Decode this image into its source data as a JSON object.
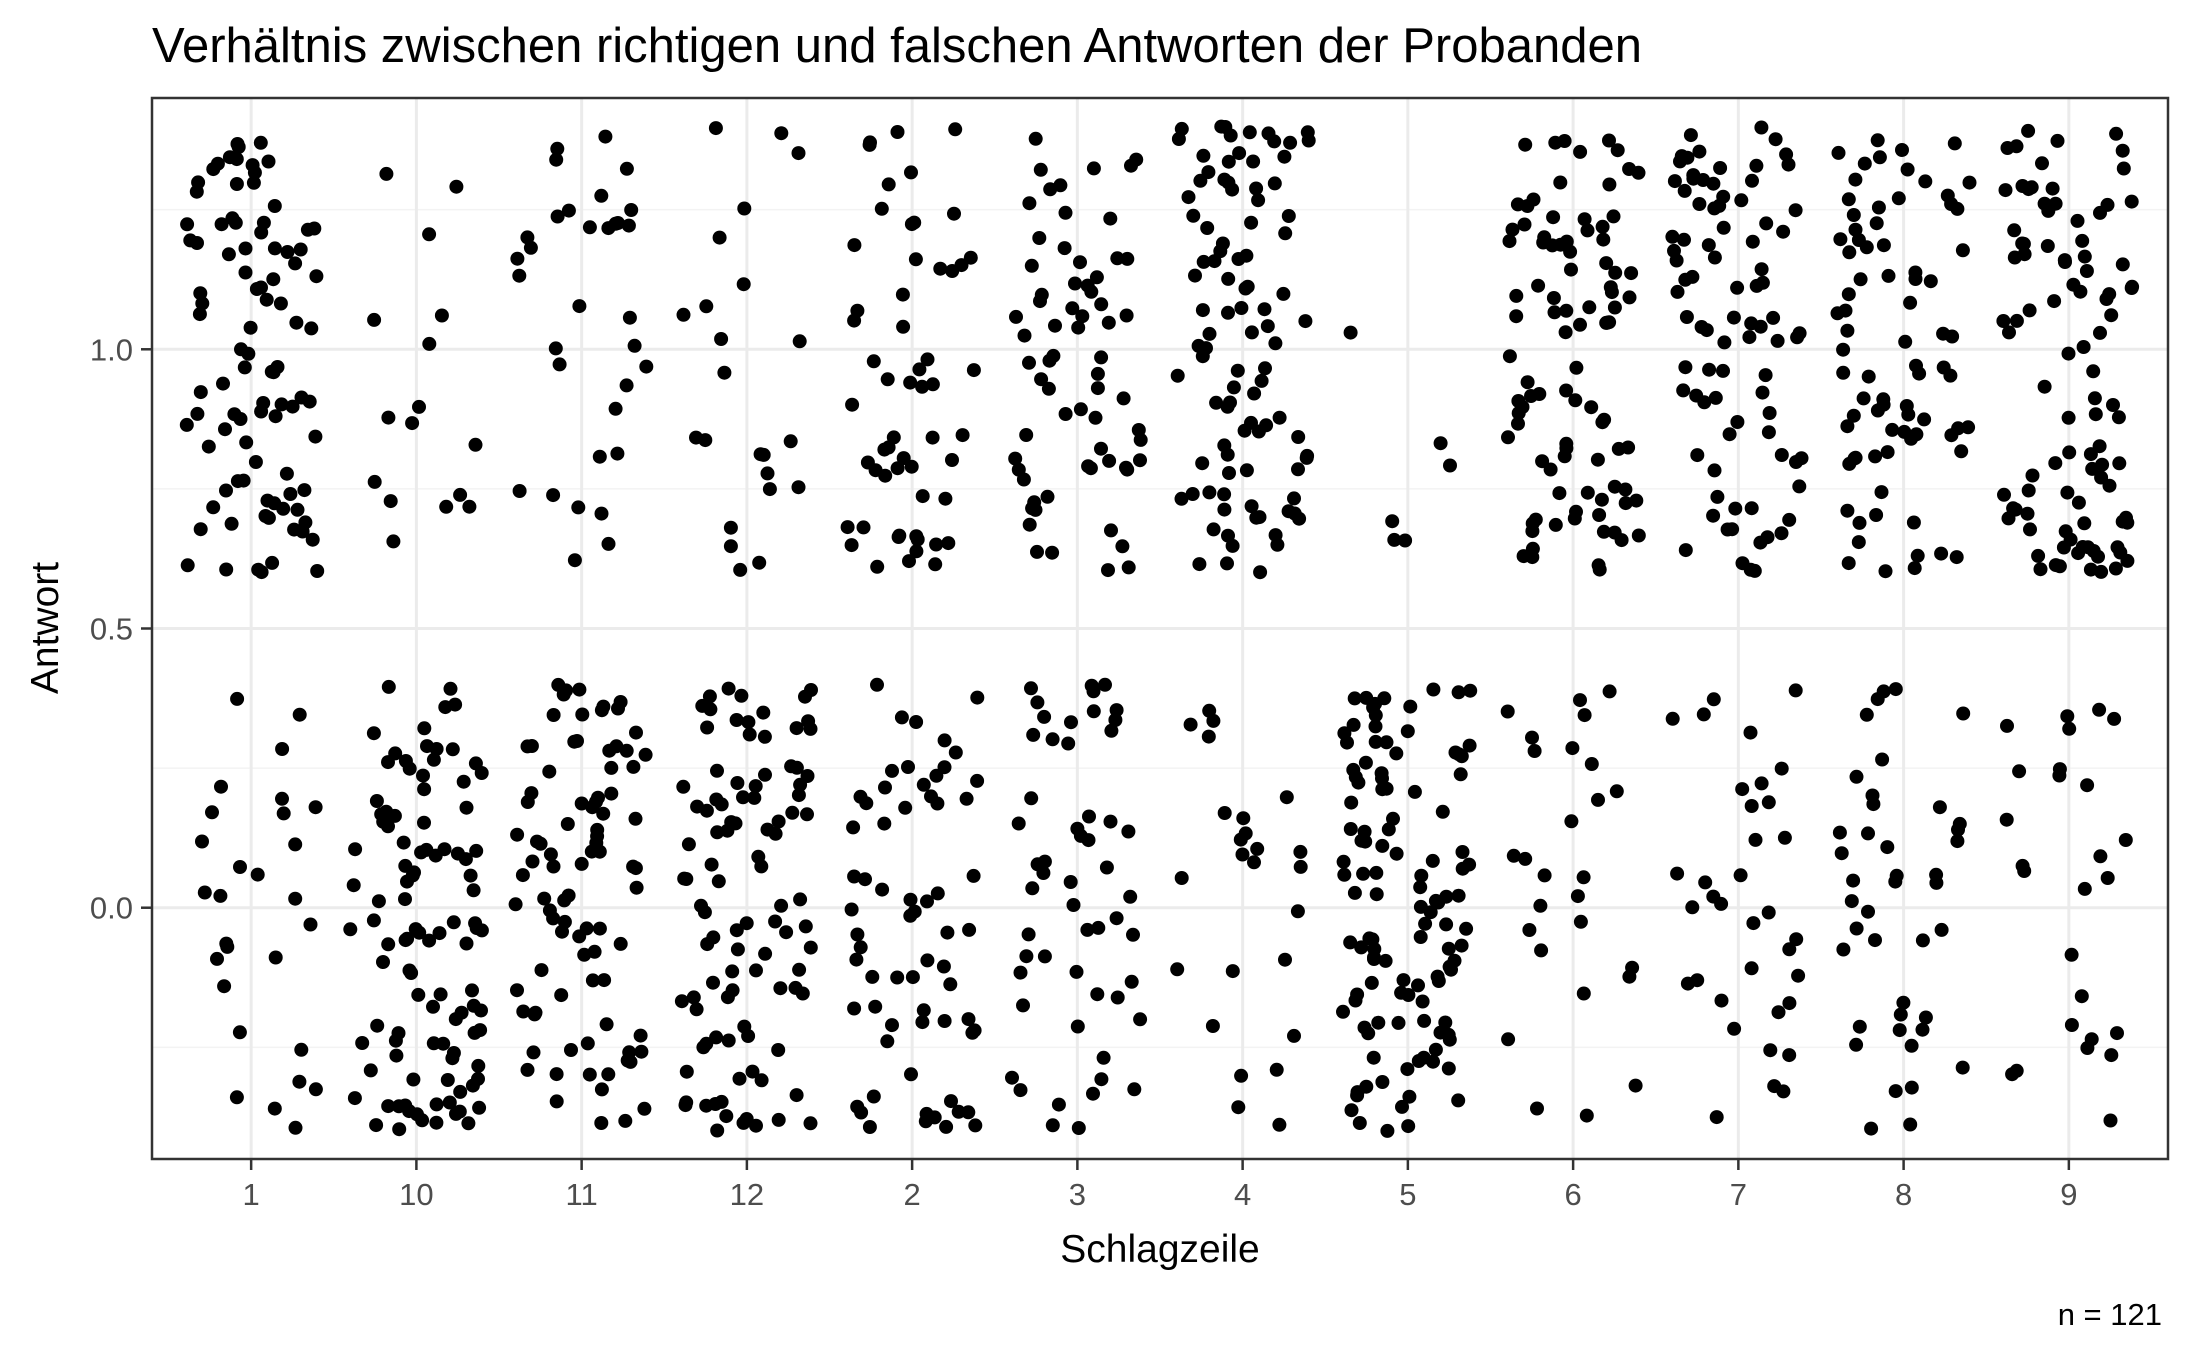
{
  "chart_data": {
    "type": "scatter",
    "jitter": true,
    "title": "Verhältnis zwischen richtigen und falschen Antworten der Probanden",
    "xlabel": "Schlagzeile",
    "ylabel": "Antwort",
    "caption": "n = 121",
    "categories": [
      "1",
      "10",
      "11",
      "12",
      "2",
      "3",
      "4",
      "5",
      "6",
      "7",
      "8",
      "9"
    ],
    "y_ticks": [
      "0.0",
      "0.5",
      "1.0"
    ],
    "y_tick_values": [
      0.0,
      0.5,
      1.0
    ],
    "ylim": [
      -0.45,
      1.45
    ],
    "grid": true,
    "point_color": "#000000",
    "counts": [
      {
        "category": "1",
        "correct": 93,
        "wrong": 28
      },
      {
        "category": "10",
        "correct": 16,
        "wrong": 105
      },
      {
        "category": "11",
        "correct": 33,
        "wrong": 88
      },
      {
        "category": "12",
        "correct": 23,
        "wrong": 98
      },
      {
        "category": "2",
        "correct": 56,
        "wrong": 65
      },
      {
        "category": "3",
        "correct": 67,
        "wrong": 54
      },
      {
        "category": "4",
        "correct": 96,
        "wrong": 25
      },
      {
        "category": "5",
        "correct": 6,
        "wrong": 115
      },
      {
        "category": "6",
        "correct": 94,
        "wrong": 27
      },
      {
        "category": "7",
        "correct": 86,
        "wrong": 35
      },
      {
        "category": "8",
        "correct": 79,
        "wrong": 42
      },
      {
        "category": "9",
        "correct": 95,
        "wrong": 26
      }
    ]
  }
}
